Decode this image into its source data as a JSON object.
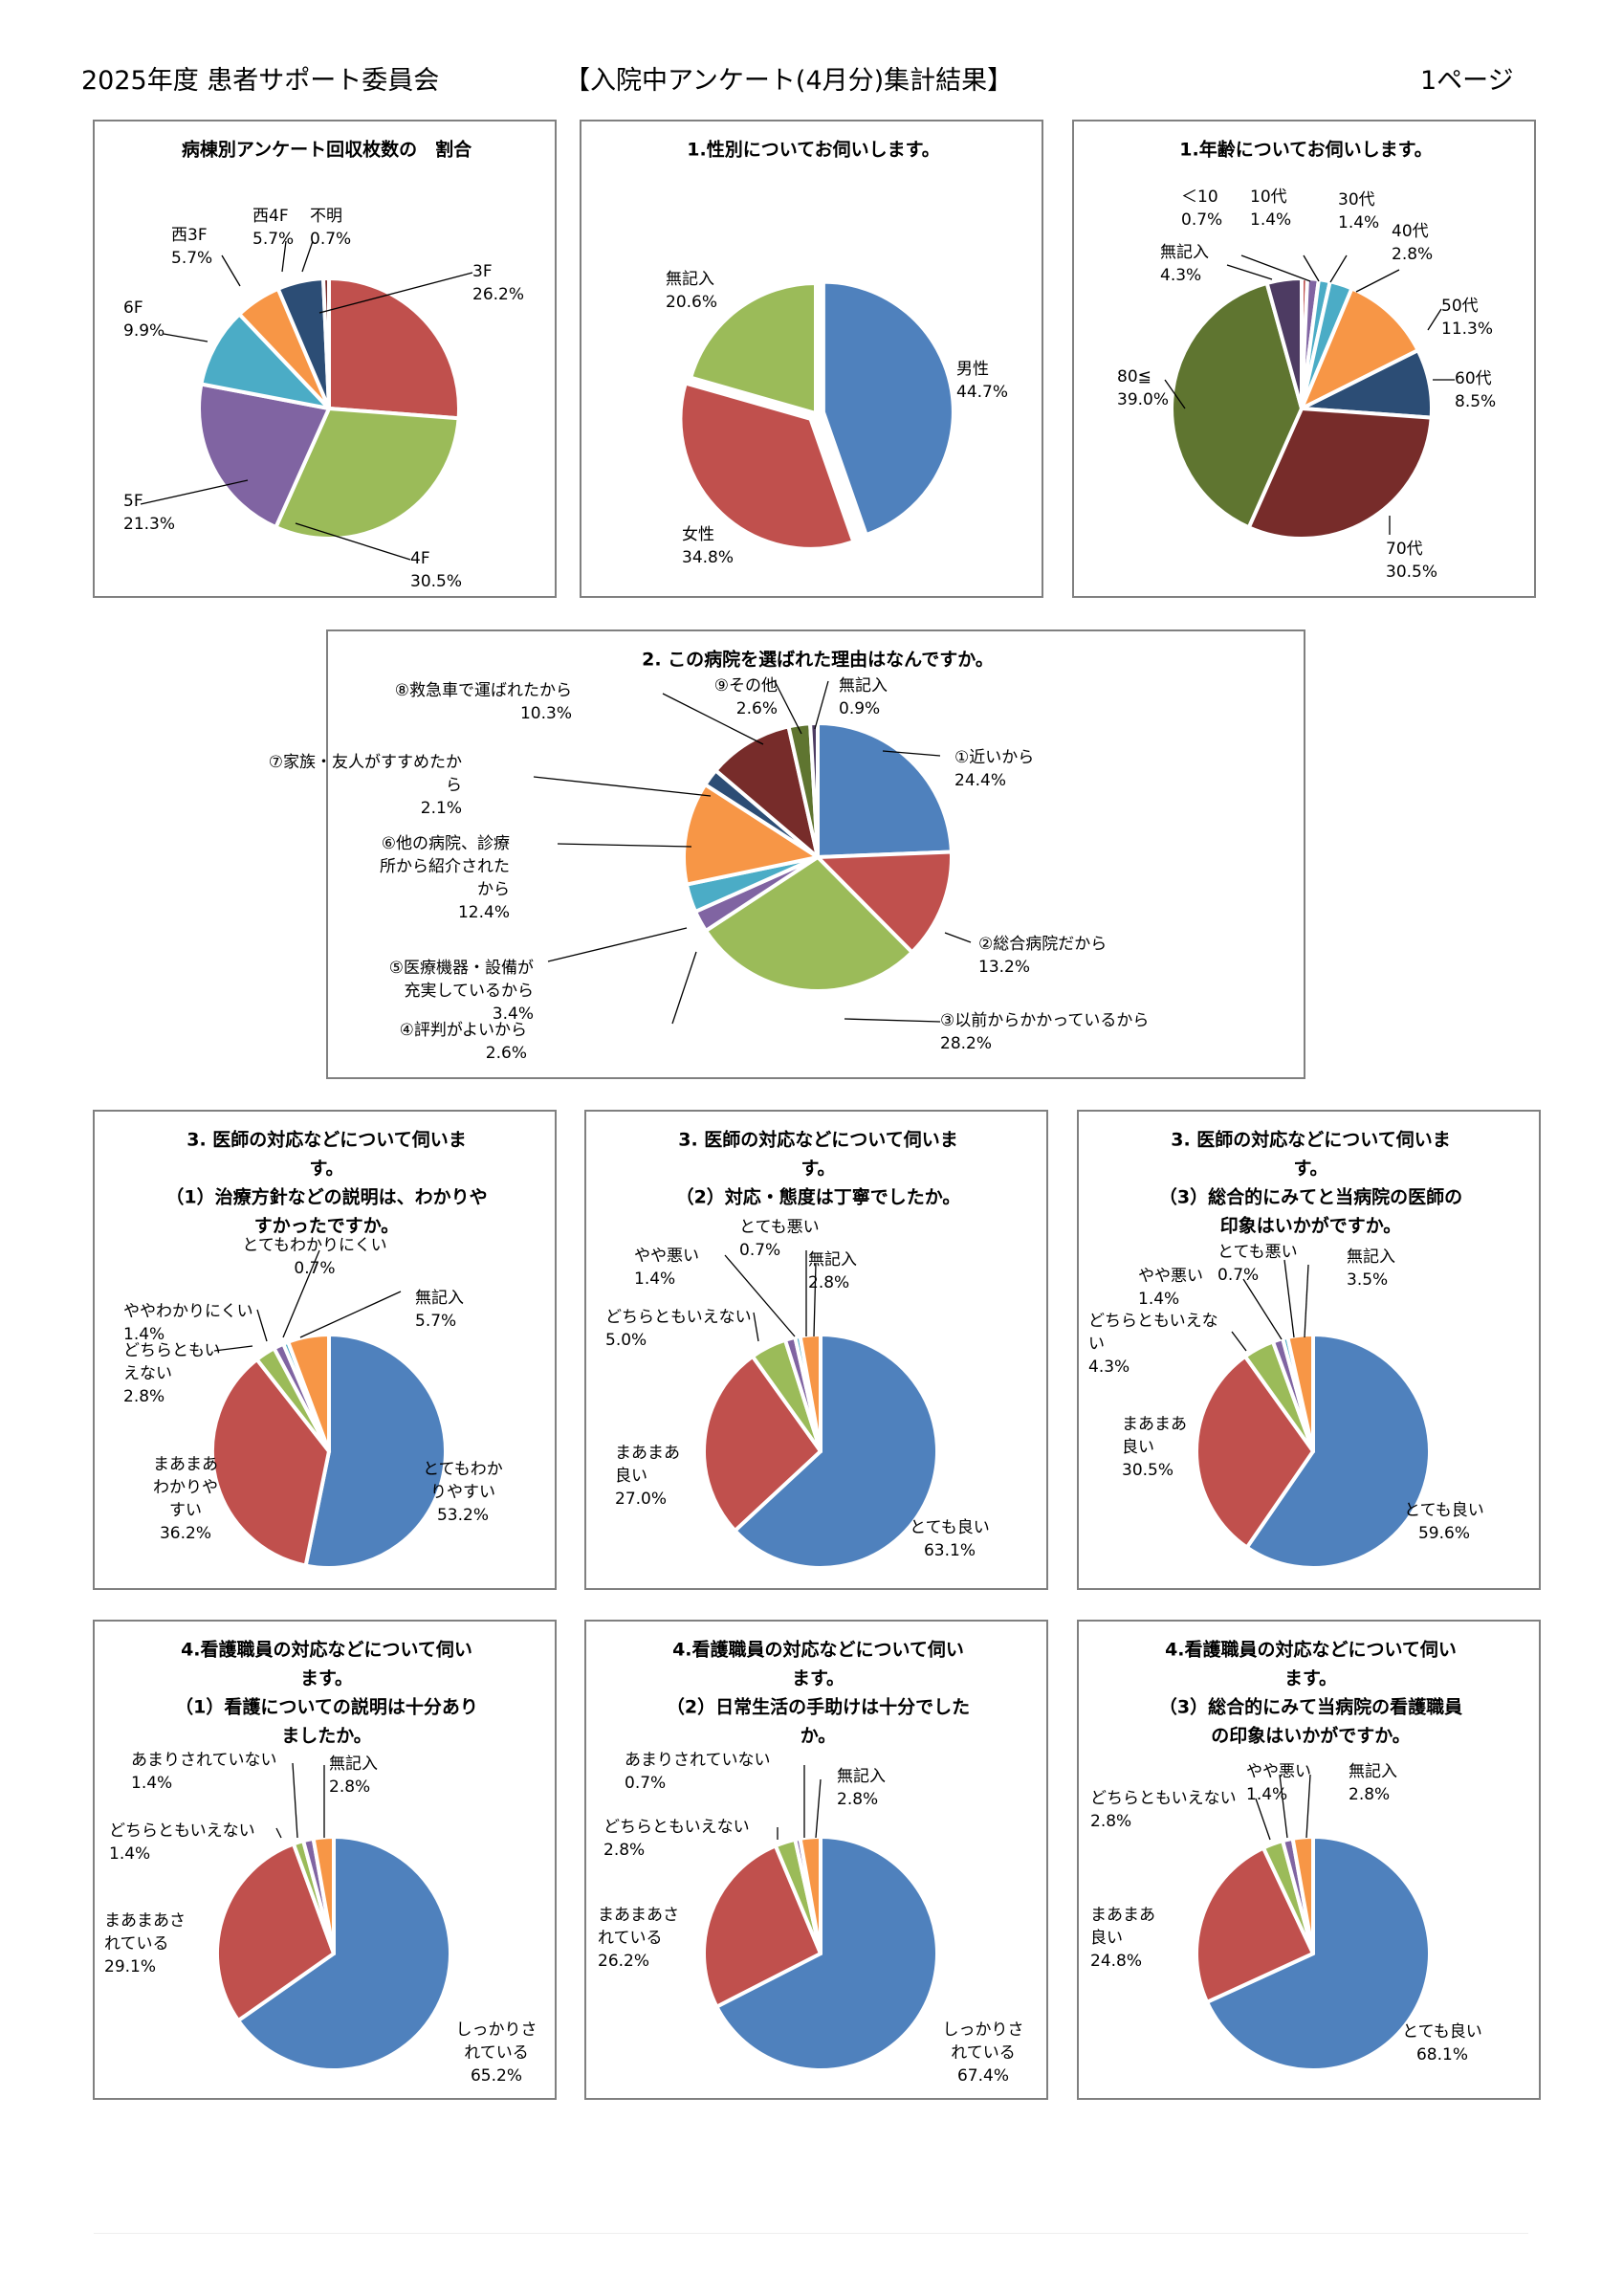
{
  "header": {
    "left": "2025年度 患者サポート委員会",
    "center": "【入院中アンケート(4月分)集計結果】",
    "right": "1ページ"
  },
  "colors": {
    "blue": "#4F81BD",
    "red": "#C0504D",
    "green": "#9BBB59",
    "purple": "#8064A2",
    "aqua": "#4BACC6",
    "orange": "#F79646",
    "navy": "#2C4D75",
    "darkred": "#772C2A",
    "olive": "#5F7530",
    "darkpurple": "#4D3B62"
  },
  "chart_data": [
    {
      "type": "pie",
      "title": [
        "病棟別アンケート回収枚数の　割合"
      ],
      "slices": [
        {
          "label": [
            "3F"
          ],
          "pct": "26.2%",
          "value": 26.2,
          "color": "red"
        },
        {
          "label": [
            "4F"
          ],
          "pct": "30.5%",
          "value": 30.5,
          "color": "green"
        },
        {
          "label": [
            "5F"
          ],
          "pct": "21.3%",
          "value": 21.3,
          "color": "purple"
        },
        {
          "label": [
            "6F"
          ],
          "pct": "9.9%",
          "value": 9.9,
          "color": "aqua"
        },
        {
          "label": [
            "西3F"
          ],
          "pct": "5.7%",
          "value": 5.7,
          "color": "orange"
        },
        {
          "label": [
            "西4F"
          ],
          "pct": "5.7%",
          "value": 5.7,
          "color": "navy"
        },
        {
          "label": [
            "不明"
          ],
          "pct": "0.7%",
          "value": 0.7,
          "color": "darkred"
        }
      ]
    },
    {
      "type": "pie",
      "title": [
        "1.性別についてお伺いします。"
      ],
      "slices": [
        {
          "label": [
            "男性"
          ],
          "pct": "44.7%",
          "value": 44.7,
          "color": "blue"
        },
        {
          "label": [
            "女性"
          ],
          "pct": "34.8%",
          "value": 34.8,
          "color": "red"
        },
        {
          "label": [
            "無記入"
          ],
          "pct": "20.6%",
          "value": 20.6,
          "color": "green"
        }
      ]
    },
    {
      "type": "pie",
      "title": [
        "1.年齢についてお伺いします。"
      ],
      "slices": [
        {
          "label": [
            "＜10"
          ],
          "pct": "0.7%",
          "value": 0.7,
          "color": "red"
        },
        {
          "label": [
            "10代"
          ],
          "pct": "1.4%",
          "value": 1.4,
          "color": "purple"
        },
        {
          "label": [
            "30代"
          ],
          "pct": "1.4%",
          "value": 1.4,
          "color": "aqua"
        },
        {
          "label": [
            "40代"
          ],
          "pct": "2.8%",
          "value": 2.8,
          "color": "aqua"
        },
        {
          "label": [
            "50代"
          ],
          "pct": "11.3%",
          "value": 11.3,
          "color": "orange"
        },
        {
          "label": [
            "60代"
          ],
          "pct": "8.5%",
          "value": 8.5,
          "color": "navy"
        },
        {
          "label": [
            "70代"
          ],
          "pct": "30.5%",
          "value": 30.5,
          "color": "darkred"
        },
        {
          "label": [
            "80≦"
          ],
          "pct": "39.0%",
          "value": 39.0,
          "color": "olive"
        },
        {
          "label": [
            "無記入"
          ],
          "pct": "4.3%",
          "value": 4.3,
          "color": "darkpurple"
        }
      ]
    },
    {
      "type": "pie",
      "title": [
        "2. この病院を選ばれた理由はなんですか。"
      ],
      "slices": [
        {
          "label": [
            "①近いから"
          ],
          "pct": "24.4%",
          "value": 24.4,
          "color": "blue"
        },
        {
          "label": [
            "②総合病院だから"
          ],
          "pct": "13.2%",
          "value": 13.2,
          "color": "red"
        },
        {
          "label": [
            "③以前からかかっているから"
          ],
          "pct": "28.2%",
          "value": 28.2,
          "color": "green"
        },
        {
          "label": [
            "④評判がよいから"
          ],
          "pct": "2.6%",
          "value": 2.6,
          "color": "purple"
        },
        {
          "label": [
            "⑤医療機器・設備が",
            "充実しているから"
          ],
          "pct": "3.4%",
          "value": 3.4,
          "color": "aqua"
        },
        {
          "label": [
            "⑥他の病院、診療",
            "所から紹介された",
            "から"
          ],
          "pct": "12.4%",
          "value": 12.4,
          "color": "orange"
        },
        {
          "label": [
            "⑦家族・友人がすすめたか",
            "ら"
          ],
          "pct": "2.1%",
          "value": 2.1,
          "color": "navy"
        },
        {
          "label": [
            "⑧救急車で運ばれたから"
          ],
          "pct": "10.3%",
          "value": 10.3,
          "color": "darkred"
        },
        {
          "label": [
            "⑨その他"
          ],
          "pct": "2.6%",
          "value": 2.6,
          "color": "olive"
        },
        {
          "label": [
            "無記入"
          ],
          "pct": "0.9%",
          "value": 0.9,
          "color": "darkpurple"
        }
      ]
    },
    {
      "type": "pie",
      "title": [
        "3. 医師の対応などについて伺いま",
        "す。",
        "（1）治療方針などの説明は、わかりや",
        "すかったですか。"
      ],
      "slices": [
        {
          "label": [
            "とてもわか",
            "りやすい"
          ],
          "pct": "53.2%",
          "value": 53.2,
          "color": "blue"
        },
        {
          "label": [
            "まあまあ",
            "わかりや",
            "すい"
          ],
          "pct": "36.2%",
          "value": 36.2,
          "color": "red"
        },
        {
          "label": [
            "どちらともい",
            "えない"
          ],
          "pct": "2.8%",
          "value": 2.8,
          "color": "green"
        },
        {
          "label": [
            "ややわかりにくい"
          ],
          "pct": "1.4%",
          "value": 1.4,
          "color": "purple"
        },
        {
          "label": [
            "とてもわかりにくい"
          ],
          "pct": "0.7%",
          "value": 0.7,
          "color": "aqua"
        },
        {
          "label": [
            "無記入"
          ],
          "pct": "5.7%",
          "value": 5.7,
          "color": "orange"
        }
      ]
    },
    {
      "type": "pie",
      "title": [
        "3. 医師の対応などについて伺いま",
        "す。",
        "（2）対応・態度は丁寧でしたか。"
      ],
      "slices": [
        {
          "label": [
            "とても良い"
          ],
          "pct": "63.1%",
          "value": 63.1,
          "color": "blue"
        },
        {
          "label": [
            "まあまあ",
            "良い"
          ],
          "pct": "27.0%",
          "value": 27.0,
          "color": "red"
        },
        {
          "label": [
            "どちらともいえない"
          ],
          "pct": "5.0%",
          "value": 5.0,
          "color": "green"
        },
        {
          "label": [
            "やや悪い"
          ],
          "pct": "1.4%",
          "value": 1.4,
          "color": "purple"
        },
        {
          "label": [
            "とても悪い"
          ],
          "pct": "0.7%",
          "value": 0.7,
          "color": "aqua"
        },
        {
          "label": [
            "無記入"
          ],
          "pct": "2.8%",
          "value": 2.8,
          "color": "orange"
        }
      ]
    },
    {
      "type": "pie",
      "title": [
        "3. 医師の対応などについて伺いま",
        "す。",
        "（3）総合的にみてと当病院の医師の",
        "印象はいかがですか。"
      ],
      "slices": [
        {
          "label": [
            "とても良い"
          ],
          "pct": "59.6%",
          "value": 59.6,
          "color": "blue"
        },
        {
          "label": [
            "まあまあ",
            "良い"
          ],
          "pct": "30.5%",
          "value": 30.5,
          "color": "red"
        },
        {
          "label": [
            "どちらともいえな",
            "い"
          ],
          "pct": "4.3%",
          "value": 4.3,
          "color": "green"
        },
        {
          "label": [
            "やや悪い"
          ],
          "pct": "1.4%",
          "value": 1.4,
          "color": "purple"
        },
        {
          "label": [
            "とても悪い"
          ],
          "pct": "0.7%",
          "value": 0.7,
          "color": "aqua"
        },
        {
          "label": [
            "無記入"
          ],
          "pct": "3.5%",
          "value": 3.5,
          "color": "orange"
        }
      ]
    },
    {
      "type": "pie",
      "title": [
        "4.看護職員の対応などについて伺い",
        "ます。",
        "（1）看護についての説明は十分あり",
        "ましたか。"
      ],
      "slices": [
        {
          "label": [
            "しっかりさ",
            "れている"
          ],
          "pct": "65.2%",
          "value": 65.2,
          "color": "blue"
        },
        {
          "label": [
            "まあまあさ",
            "れている"
          ],
          "pct": "29.1%",
          "value": 29.1,
          "color": "red"
        },
        {
          "label": [
            "どちらともいえない"
          ],
          "pct": "1.4%",
          "value": 1.4,
          "color": "green"
        },
        {
          "label": [
            "あまりされていない"
          ],
          "pct": "1.4%",
          "value": 1.4,
          "color": "purple"
        },
        {
          "label": [
            "無記入"
          ],
          "pct": "2.8%",
          "value": 2.8,
          "color": "orange"
        }
      ]
    },
    {
      "type": "pie",
      "title": [
        "4.看護職員の対応などについて伺い",
        "ます。",
        "（2）日常生活の手助けは十分でした",
        "か。"
      ],
      "slices": [
        {
          "label": [
            "しっかりさ",
            "れている"
          ],
          "pct": "67.4%",
          "value": 67.4,
          "color": "blue"
        },
        {
          "label": [
            "まあまあさ",
            "れている"
          ],
          "pct": "26.2%",
          "value": 26.2,
          "color": "red"
        },
        {
          "label": [
            "どちらともいえない"
          ],
          "pct": "2.8%",
          "value": 2.8,
          "color": "green"
        },
        {
          "label": [
            "あまりされていない"
          ],
          "pct": "0.7%",
          "value": 0.7,
          "color": "purple"
        },
        {
          "label": [
            "無記入"
          ],
          "pct": "2.8%",
          "value": 2.8,
          "color": "orange"
        }
      ]
    },
    {
      "type": "pie",
      "title": [
        "4.看護職員の対応などについて伺い",
        "ます。",
        "（3）総合的にみて当病院の看護職員",
        "の印象はいかがですか。"
      ],
      "slices": [
        {
          "label": [
            "とても良い"
          ],
          "pct": "68.1%",
          "value": 68.1,
          "color": "blue"
        },
        {
          "label": [
            "まあまあ",
            "良い"
          ],
          "pct": "24.8%",
          "value": 24.8,
          "color": "red"
        },
        {
          "label": [
            "どちらともいえない"
          ],
          "pct": "2.8%",
          "value": 2.8,
          "color": "green"
        },
        {
          "label": [
            "やや悪い"
          ],
          "pct": "1.4%",
          "value": 1.4,
          "color": "purple"
        },
        {
          "label": [
            "無記入"
          ],
          "pct": "2.8%",
          "value": 2.8,
          "color": "orange"
        }
      ]
    }
  ]
}
